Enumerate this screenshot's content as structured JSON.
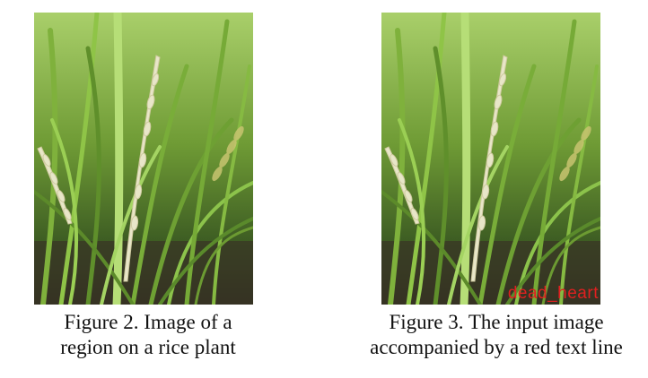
{
  "figures": [
    {
      "image_description": "rice-plant-photo",
      "caption_lines": [
        "Figure 2. Image of a",
        "region on a rice plant"
      ]
    },
    {
      "image_description": "rice-plant-photo-with-label",
      "overlay_label": "dead_heart",
      "overlay_color": "#e02020",
      "caption_lines": [
        "Figure 3. The input image",
        "accompanied by a red text line"
      ]
    }
  ]
}
